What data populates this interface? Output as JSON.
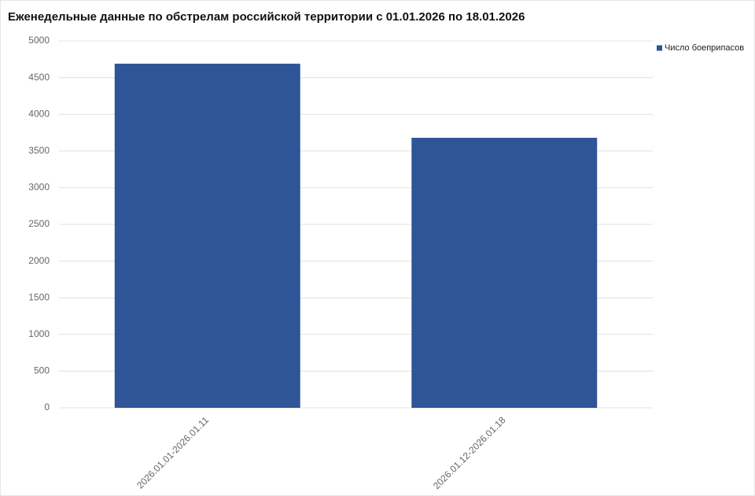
{
  "chart_data": {
    "type": "bar",
    "title": "Еженедельные данные по обстрелам российской территории с 01.01.2026 по 18.01.2026",
    "categories": [
      "2026.01.01-2026.01.11",
      "2026.01.12-2026.01.18"
    ],
    "series": [
      {
        "name": "Число боеприпасов",
        "color": "#2f5597",
        "values": [
          4690,
          3680
        ]
      }
    ],
    "ylim": [
      0,
      5000
    ],
    "yticks": [
      0,
      500,
      1000,
      1500,
      2000,
      2500,
      3000,
      3500,
      4000,
      4500,
      5000
    ],
    "grid": true,
    "legend": "top-right"
  }
}
